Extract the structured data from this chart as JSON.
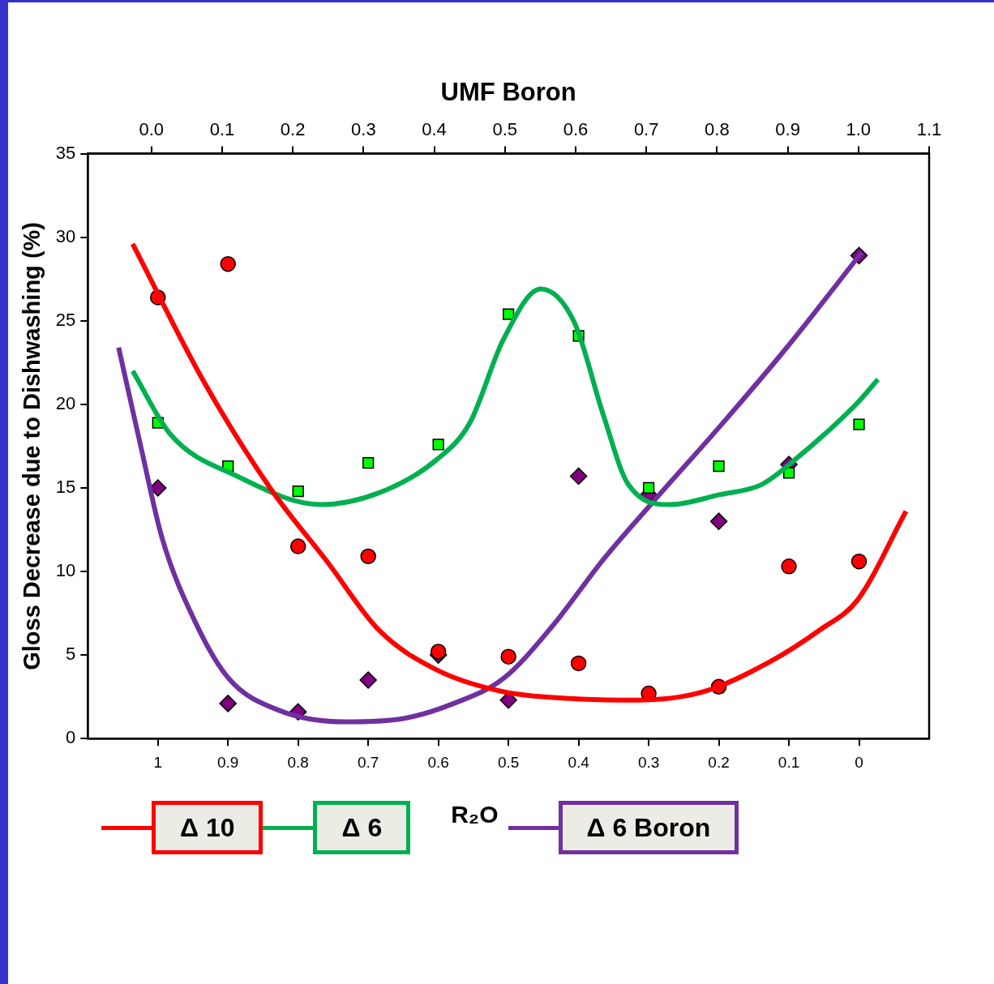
{
  "chart_data": {
    "type": "scatter",
    "x2label": "UMF Boron",
    "xlabel": "R₂O",
    "ylabel": "Gloss Decrease due to Dishwashing (%)",
    "xlim": [
      1.1,
      -0.1
    ],
    "xticks": [
      1,
      0.9,
      0.8,
      0.7,
      0.6,
      0.5,
      0.4,
      0.3,
      0.2,
      0.1,
      0
    ],
    "x2lim": [
      -0.09,
      1.1
    ],
    "x2ticks": [
      {
        "value": 0,
        "label": "0.0"
      },
      {
        "value": 0.1,
        "label": "0.1"
      },
      {
        "value": 0.2,
        "label": "0.2"
      },
      {
        "value": 0.3,
        "label": "0.3"
      },
      {
        "value": 0.4,
        "label": "0.4"
      },
      {
        "value": 0.5,
        "label": "0.5"
      },
      {
        "value": 0.6,
        "label": "0.6"
      },
      {
        "value": 0.7,
        "label": "0.7"
      },
      {
        "value": 0.8,
        "label": "0.8"
      },
      {
        "value": 0.9,
        "label": "0.9"
      },
      {
        "value": 1,
        "label": "1.0"
      },
      {
        "value": 1.1,
        "label": "1.1"
      }
    ],
    "ylim": [
      0,
      35
    ],
    "yticks": [
      0,
      5,
      10,
      15,
      20,
      25,
      30,
      35
    ],
    "grid": false,
    "legend": "bottom",
    "x": [
      1,
      0.9,
      0.8,
      0.7,
      0.6,
      0.5,
      0.4,
      0.3,
      0.2,
      0.1,
      0
    ],
    "series": [
      {
        "marker": "circle",
        "color": "#ff0000",
        "values": [
          26.4,
          28.4,
          11.5,
          10.9,
          5.2,
          4.9,
          4.5,
          2.7,
          3.1,
          10.3,
          10.6
        ]
      },
      {
        "marker": "square",
        "color": "#00ff00",
        "values": [
          18.9,
          16.3,
          14.8,
          16.5,
          17.6,
          25.4,
          24.1,
          15.0,
          16.3,
          15.9,
          18.8
        ]
      },
      {
        "marker": "diamond",
        "color": "#800080",
        "values": [
          15.0,
          2.1,
          1.6,
          3.5,
          5.0,
          2.3,
          15.7,
          14.6,
          13.0,
          16.4,
          28.9
        ]
      },
      {
        "type": "line",
        "name": "Δ 10",
        "color": "#ff0000",
        "marker": "none",
        "x": [
          1.036,
          0.935,
          0.84,
          0.757,
          0.685,
          0.602,
          0.507,
          0.412,
          0.317,
          0.222,
          0.127,
          0.056,
          0.002,
          -0.067
        ],
        "values": [
          29.6,
          21.4,
          15.0,
          10.5,
          6.5,
          4.1,
          2.8,
          2.4,
          2.3,
          2.8,
          4.6,
          6.5,
          8.3,
          13.6
        ]
      },
      {
        "type": "line",
        "name": "Δ 6",
        "color": "#00b050",
        "marker": "none",
        "x": [
          1.036,
          0.982,
          0.887,
          0.768,
          0.685,
          0.602,
          0.555,
          0.507,
          0.454,
          0.406,
          0.365,
          0.329,
          0.27,
          0.198,
          0.139,
          0.091,
          0.002,
          -0.027
        ],
        "values": [
          22.0,
          18.2,
          15.7,
          14.0,
          14.7,
          16.7,
          18.9,
          23.9,
          26.9,
          24.9,
          19.4,
          15.2,
          14.0,
          14.6,
          15.2,
          16.7,
          20.1,
          21.5
        ]
      },
      {
        "type": "line",
        "name": "Δ 6 Boron",
        "color": "#7030a0",
        "marker": "none",
        "x": [
          1.056,
          1.024,
          0.994,
          0.947,
          0.899,
          0.828,
          0.733,
          0.65,
          0.578,
          0.507,
          0.436,
          0.365,
          0.293,
          0.198,
          0.103,
          -0.004
        ],
        "values": [
          23.4,
          17.4,
          12.0,
          7.0,
          3.6,
          1.7,
          1.0,
          1.2,
          2.1,
          3.6,
          6.8,
          10.7,
          14.2,
          18.7,
          23.4,
          29.1
        ]
      }
    ]
  }
}
